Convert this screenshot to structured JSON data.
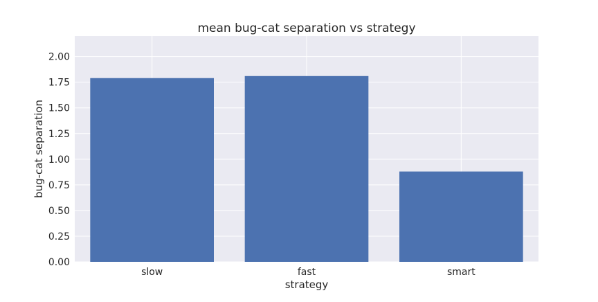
{
  "chart_data": {
    "type": "bar",
    "title": "mean bug-cat separation vs strategy",
    "xlabel": "strategy",
    "ylabel": "bug-cat separation",
    "categories": [
      "slow",
      "fast",
      "smart"
    ],
    "values": [
      1.79,
      1.81,
      0.88
    ],
    "ylim": [
      0,
      2.2
    ],
    "yticks": [
      "0.00",
      "0.25",
      "0.50",
      "0.75",
      "1.00",
      "1.25",
      "1.50",
      "1.75",
      "2.00"
    ],
    "grid": true,
    "legend": "none",
    "colors": {
      "bar": "#4c72b0",
      "plot_background": "#eaeaf2",
      "grid": "#ffffff"
    }
  }
}
